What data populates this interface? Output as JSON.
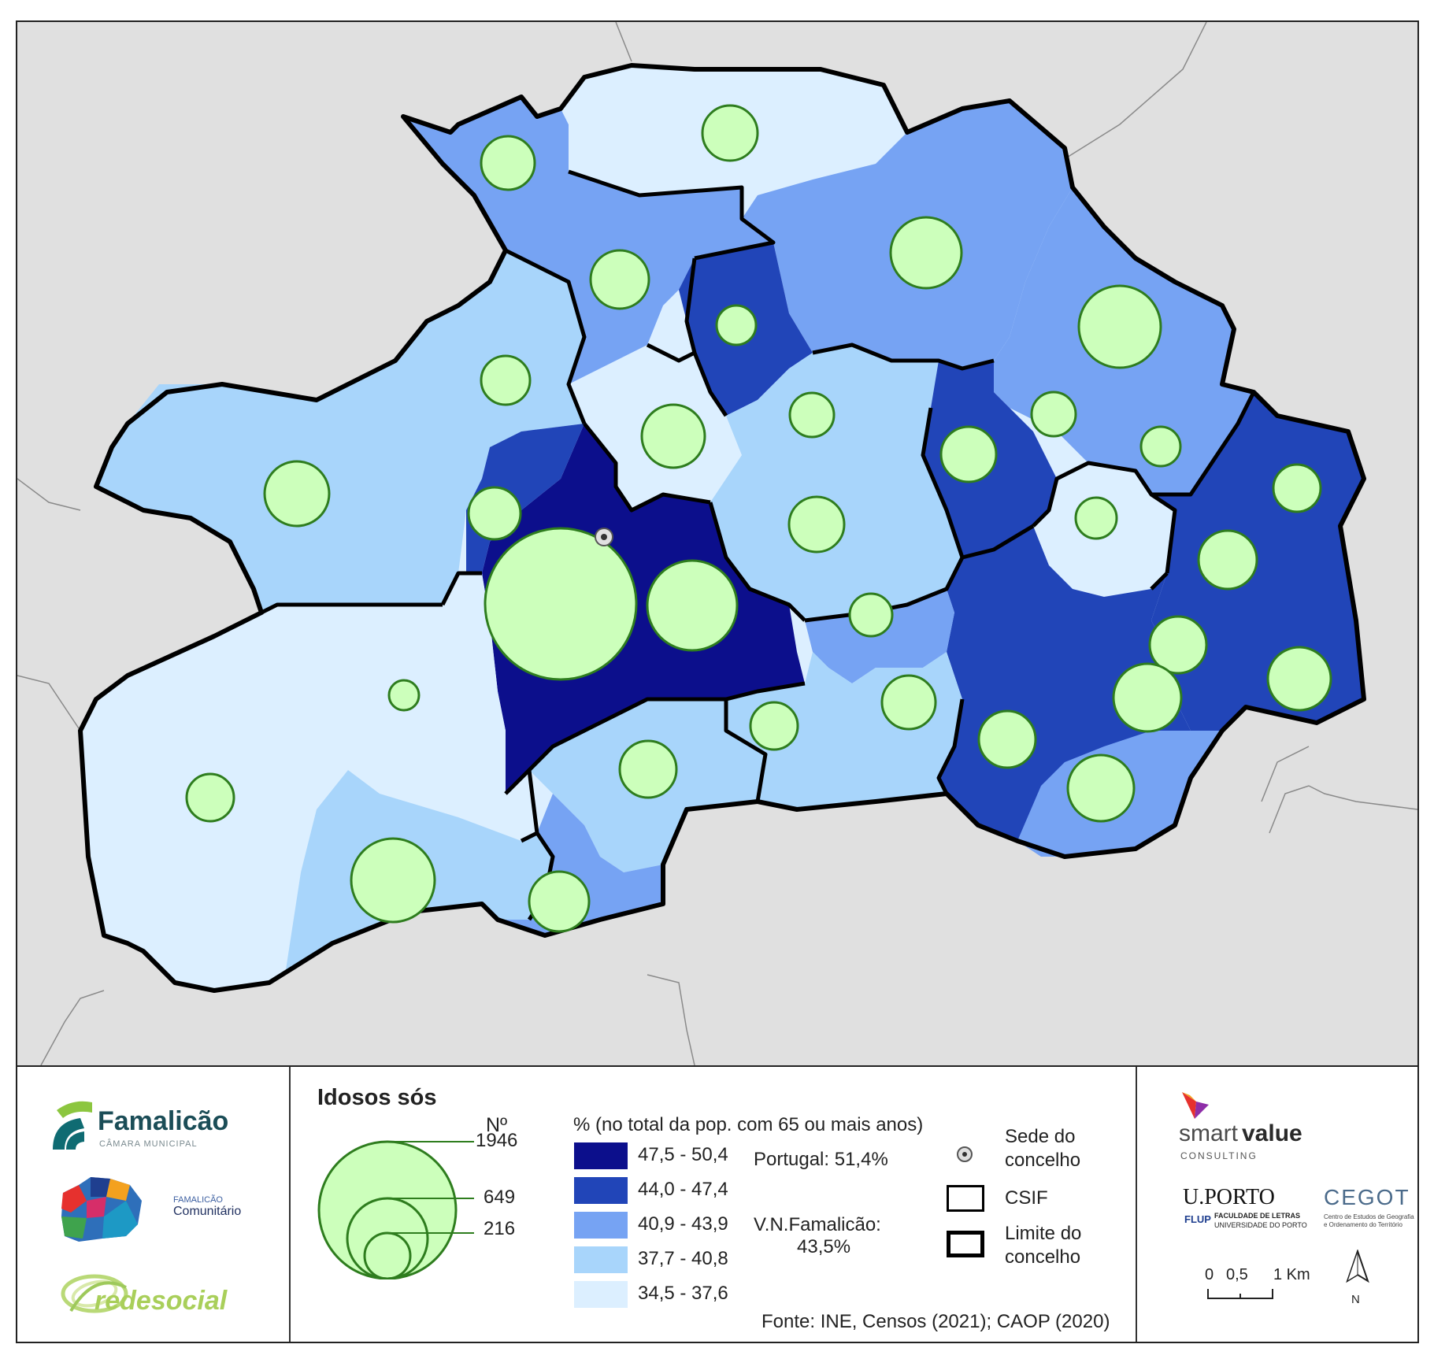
{
  "title": "Idosos sós",
  "size_legend": {
    "header": "Nº",
    "values": [
      "1946",
      "649",
      "216"
    ]
  },
  "class_legend": {
    "header": "% (no total da pop. com 65 ou mais anos)",
    "classes": [
      {
        "label": "47,5 - 50,4",
        "color": "#0c0f8c"
      },
      {
        "label": "44,0 - 47,4",
        "color": "#2145b8"
      },
      {
        "label": "40,9 - 43,9",
        "color": "#76a3f3"
      },
      {
        "label": "37,7 - 40,8",
        "color": "#a8d5fb"
      },
      {
        "label": "34,5 - 37,6",
        "color": "#dcefff"
      }
    ]
  },
  "reference": {
    "portugal": "Portugal: 51,4%",
    "vnf_label": "V.N.Famalicão:",
    "vnf_value": "43,5%"
  },
  "symbols": {
    "sede": [
      "Sede do",
      "concelho"
    ],
    "csif": "CSIF",
    "limite": [
      "Limite do",
      "concelho"
    ]
  },
  "source": "Fonte: INE, Censos (2021); CAOP (2020)",
  "logos": {
    "famalicao": "Famalicão",
    "famalicao_sub": "CÂMARA MUNICIPAL",
    "comunitario_small": "FAMALICÃO",
    "comunitario": "Comunitário",
    "redesocial": "redesocial",
    "smartvalue_a": "smart",
    "smartvalue_b": "value",
    "consulting": "CONSULTING",
    "uporto": "U.PORTO",
    "flup": "FLUP",
    "flup_text_1": "FACULDADE DE LETRAS",
    "flup_text_2": "UNIVERSIDADE DO PORTO",
    "cegot": "CEGOT",
    "cegot_text_1": "Centro de Estudos de Geografia",
    "cegot_text_2": "e Ordenamento do Território"
  },
  "scale": {
    "labels": [
      "0",
      "0,5",
      "1 Km"
    ]
  },
  "north": "N",
  "colors": {
    "background": "#e0e0e0",
    "bubble_fill": "#ccffbb",
    "bubble_stroke": "#2e7d1e",
    "outline": "#000000"
  }
}
